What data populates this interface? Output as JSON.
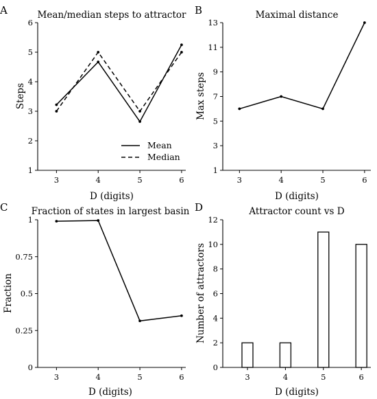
{
  "chart_data": [
    {
      "panel": "A",
      "type": "line",
      "title": "Mean/median steps to attractor",
      "xlabel": "D (digits)",
      "ylabel": "Steps",
      "x": [
        3,
        4,
        5,
        6
      ],
      "xlim": [
        2.55,
        6.1
      ],
      "ylim": [
        1,
        6
      ],
      "yticks": [
        1,
        2,
        3,
        4,
        5,
        6
      ],
      "series": [
        {
          "name": "Mean",
          "style": "solid",
          "values": [
            3.22,
            4.67,
            2.65,
            5.25
          ]
        },
        {
          "name": "Median",
          "style": "dashed",
          "values": [
            3.0,
            5.0,
            3.0,
            5.0
          ]
        }
      ],
      "legend": "bottom-right"
    },
    {
      "panel": "B",
      "type": "line",
      "title": "Maximal distance",
      "xlabel": "D (digits)",
      "ylabel": "Max steps",
      "x": [
        3,
        4,
        5,
        6
      ],
      "xlim": [
        2.6,
        6.15
      ],
      "ylim": [
        1,
        13
      ],
      "yticks": [
        1,
        3,
        5,
        7,
        9,
        11,
        13
      ],
      "series": [
        {
          "style": "solid",
          "values": [
            6,
            7,
            6,
            13
          ]
        }
      ]
    },
    {
      "panel": "C",
      "type": "line",
      "title": "Fraction of states in largest basin",
      "xlabel": "D (digits)",
      "ylabel": "Fraction",
      "x": [
        3,
        4,
        5,
        6
      ],
      "xlim": [
        2.55,
        6.1
      ],
      "ylim": [
        0,
        1
      ],
      "yticks": [
        0,
        0.25,
        0.5,
        0.75,
        1
      ],
      "ytick_labels": [
        "0",
        "0.25",
        "0.5",
        "0.75",
        "1"
      ],
      "series": [
        {
          "style": "solid",
          "values": [
            0.99,
            0.995,
            0.315,
            0.35
          ]
        }
      ]
    },
    {
      "panel": "D",
      "type": "bar",
      "title": "Attractor count vs D",
      "xlabel": "D (digits)",
      "ylabel": "Number of attractors",
      "categories": [
        "3",
        "4",
        "5",
        "6"
      ],
      "values": [
        2,
        2,
        11,
        10
      ],
      "ylim": [
        0,
        12
      ],
      "yticks": [
        0,
        2,
        4,
        6,
        8,
        10,
        12
      ],
      "bar_fill": "#ffffff",
      "bar_edge": "#000000"
    }
  ]
}
